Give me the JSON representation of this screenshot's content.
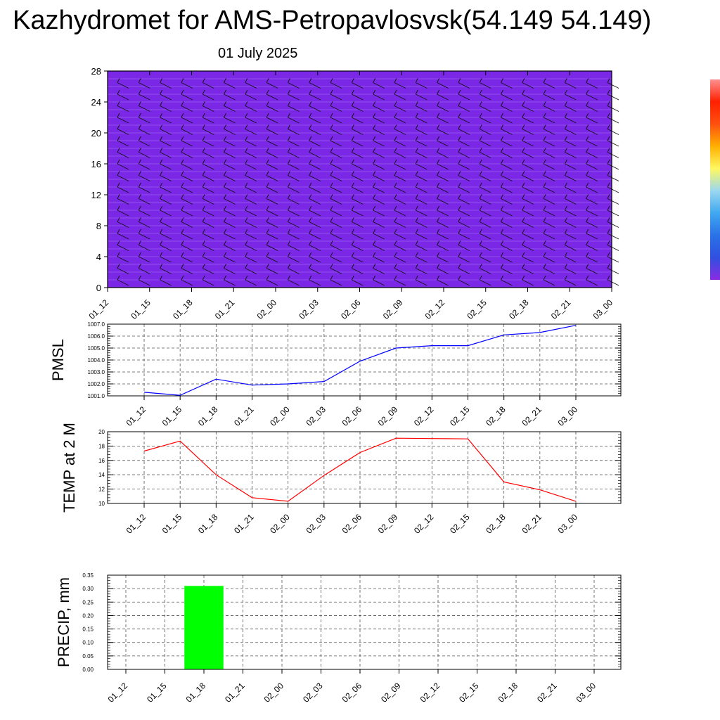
{
  "header": {
    "title": "Kazhydromet for AMS-Petropavlosvsk(54.149 54.149)",
    "subtitle": "01 July 2025"
  },
  "colors": {
    "pmsl_line": "#0000ff",
    "temp_line": "#ff0000",
    "precip_bar": "#00ff00",
    "grid": "#555555"
  },
  "time_labels": [
    "01_12",
    "01_15",
    "01_18",
    "01_21",
    "02_00",
    "02_03",
    "02_06",
    "02_09",
    "02_12",
    "02_15",
    "02_18",
    "02_21",
    "03_00"
  ],
  "chart_data": [
    {
      "type": "heatmap",
      "name": "vertical-profile",
      "x": [
        "01_12",
        "01_15",
        "01_18",
        "01_21",
        "02_00",
        "02_03",
        "02_06",
        "02_09",
        "02_12",
        "02_15",
        "02_18",
        "02_21",
        "03_00"
      ],
      "ylim": [
        0,
        28
      ],
      "yticks": [
        "0",
        "4",
        "8",
        "12",
        "16",
        "20",
        "24",
        "28"
      ],
      "colormap": [
        "#7a28e6",
        "#2050e8",
        "#3a78e6",
        "#5aa8ec",
        "#c8ecf8",
        "#ffffe0",
        "#ffd000",
        "#ff9000",
        "#ff4000",
        "#ff1000"
      ],
      "colorbar": [
        "#8a2be2",
        "#3050e0",
        "#2a72e8",
        "#40a8f0",
        "#9ad8f0",
        "#fff860",
        "#ffb000",
        "#ff5010",
        "#ff2000",
        "#ff9090"
      ]
    },
    {
      "type": "line",
      "name": "pmsl",
      "ylabel": "PMSL",
      "x": [
        "01_12",
        "01_15",
        "01_18",
        "01_21",
        "02_00",
        "02_03",
        "02_06",
        "02_09",
        "02_12",
        "02_15",
        "02_18",
        "02_21",
        "03_00"
      ],
      "values": [
        1001.3,
        1001.05,
        1002.4,
        1001.9,
        1002.0,
        1002.2,
        1003.9,
        1005.0,
        1005.2,
        1005.2,
        1006.1,
        1006.3,
        1006.9
      ],
      "ylim": [
        1001.0,
        1007.0
      ],
      "yticks": [
        "1001.0",
        "1002.0",
        "1003.0",
        "1004.0",
        "1005.0",
        "1006.0",
        "1007.0"
      ]
    },
    {
      "type": "line",
      "name": "temp",
      "ylabel": "TEMP at 2 M",
      "x": [
        "01_12",
        "01_15",
        "01_18",
        "01_21",
        "02_00",
        "02_03",
        "02_06",
        "02_09",
        "02_12",
        "02_15",
        "02_18",
        "02_21",
        "03_00"
      ],
      "values": [
        17.3,
        18.7,
        14.0,
        10.8,
        10.3,
        13.9,
        17.1,
        19.1,
        19.05,
        19.0,
        13.0,
        11.9,
        10.3
      ],
      "ylim": [
        10,
        20
      ],
      "yticks": [
        "10",
        "12",
        "14",
        "16",
        "18",
        "20"
      ]
    },
    {
      "type": "bar",
      "name": "precip",
      "ylabel": "PRECIP, mm",
      "categories": [
        "01_12",
        "01_15",
        "01_18",
        "01_21",
        "02_00",
        "02_03",
        "02_06",
        "02_09",
        "02_12",
        "02_15",
        "02_18",
        "02_21",
        "03_00"
      ],
      "values": [
        0,
        0,
        0.31,
        0,
        0,
        0,
        0,
        0,
        0,
        0,
        0,
        0,
        0
      ],
      "ylim": [
        0,
        0.35
      ],
      "yticks": [
        "0.00",
        "0.05",
        "0.10",
        "0.15",
        "0.20",
        "0.25",
        "0.30",
        "0.35"
      ]
    }
  ]
}
